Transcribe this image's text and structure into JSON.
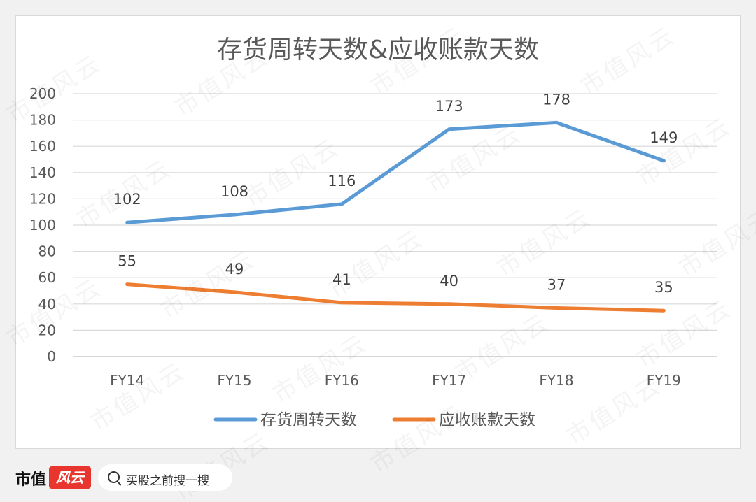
{
  "footer": {
    "brand": "市值",
    "brand_logo_text": "风云",
    "search_label": "买股之前搜一搜",
    "search_icon": "search-icon"
  },
  "watermark": "市值风云",
  "chart_data": {
    "type": "line",
    "title": "存货周转天数&应收账款天数",
    "categories": [
      "FY14",
      "FY15",
      "FY16",
      "FY17",
      "FY18",
      "FY19"
    ],
    "series": [
      {
        "name": "存货周转天数",
        "values": [
          102,
          108,
          116,
          173,
          178,
          149
        ],
        "color": "#5b9bd5"
      },
      {
        "name": "应收账款天数",
        "values": [
          55,
          49,
          41,
          40,
          37,
          35
        ],
        "color": "#ed7d31"
      }
    ],
    "ylim": [
      0,
      200
    ],
    "yticks": [
      0,
      20,
      40,
      60,
      80,
      100,
      120,
      140,
      160,
      180,
      200
    ],
    "grid": true,
    "legend": "bottom"
  }
}
